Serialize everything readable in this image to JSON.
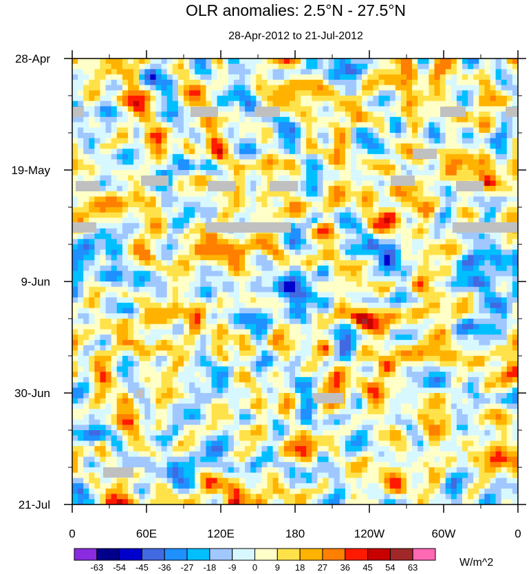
{
  "chart_data": {
    "type": "heatmap",
    "title": "OLR anomalies: 2.5°N - 27.5°N",
    "subtitle": "28-Apr-2012 to 21-Jul-2012",
    "x_ticks": [
      "0",
      "60E",
      "120E",
      "180",
      "120W",
      "60W",
      "0"
    ],
    "x_range_degrees_east": [
      0,
      360
    ],
    "y_ticks": [
      "28-Apr",
      "19-May",
      "9-Jun",
      "30-Jun",
      "21-Jul"
    ],
    "y_range": [
      "28-Apr-2012",
      "21-Jul-2012"
    ],
    "y_direction": "time increases downward",
    "colorbar": {
      "units": "W/m^2",
      "levels": [
        -63,
        -54,
        -45,
        -36,
        -27,
        -18,
        -9,
        0,
        9,
        18,
        27,
        36,
        45,
        54,
        63
      ],
      "colors": [
        "#8a2be2",
        "#00008b",
        "#0000cd",
        "#4169e1",
        "#1e90ff",
        "#00bfff",
        "#a0c8ff",
        "#d8f8ff",
        "#ffffc8",
        "#ffe24a",
        "#ffb300",
        "#ff7f00",
        "#ff1a00",
        "#c80000",
        "#a02828",
        "#ff69b4"
      ]
    },
    "missing_data_color": "#c0c0c0",
    "grid": false
  }
}
